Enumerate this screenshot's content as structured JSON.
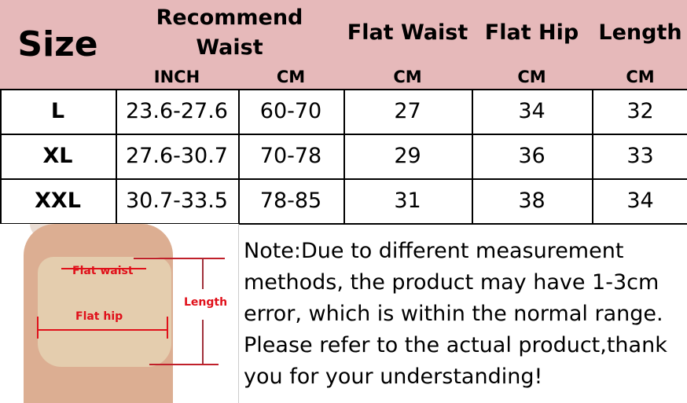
{
  "header": {
    "size": "Size",
    "recommend_waist": "Recommend Waist",
    "flat_waist": "Flat Waist",
    "flat_hip": "Flat Hip",
    "length": "Length",
    "units": [
      "INCH",
      "CM",
      "CM",
      "CM",
      "CM"
    ]
  },
  "rows": [
    {
      "size": "L",
      "inch": "23.6-27.6",
      "cm": "60-70",
      "flat_waist": "27",
      "flat_hip": "34",
      "length": "32"
    },
    {
      "size": "XL",
      "inch": "27.6-30.7",
      "cm": "70-78",
      "flat_waist": "29",
      "flat_hip": "36",
      "length": "33"
    },
    {
      "size": "XXL",
      "inch": "30.7-33.5",
      "cm": "78-85",
      "flat_waist": "31",
      "flat_hip": "38",
      "length": "34"
    }
  ],
  "photo": {
    "flat_waist_label": "Flat waist",
    "flat_hip_label": "Flat hip",
    "length_label": "Length"
  },
  "note": "Note:Due to different measurement methods, the product may have 1-3cm error, which is within the normal range. Please refer to the actual product,thank you for your understanding!",
  "colors": {
    "header_bg": "#e6b9ba",
    "measure_red": "#e0101a"
  }
}
